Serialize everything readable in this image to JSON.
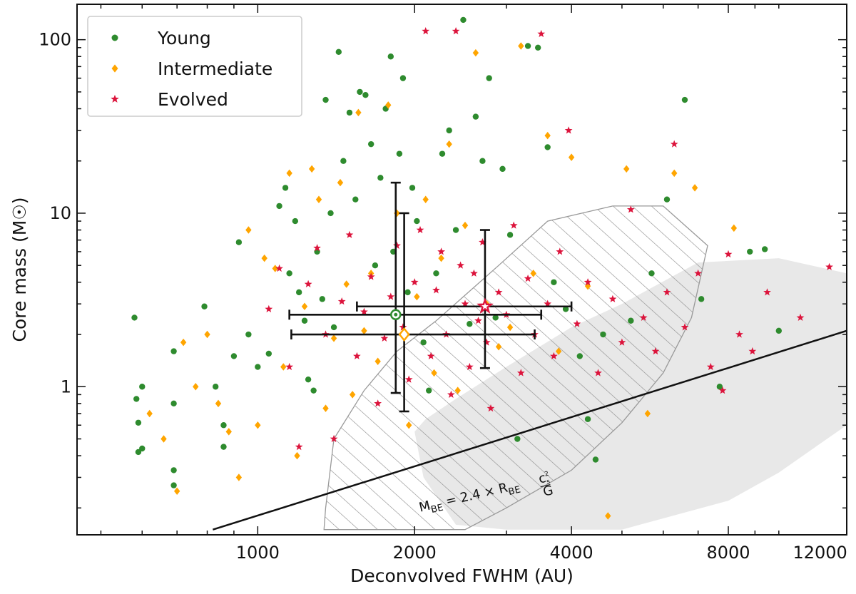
{
  "chart_data": {
    "type": "scatter",
    "xlabel": "Deconvolved FWHM (AU)",
    "ylabel": "Core mass (M☉)",
    "xscale": "log",
    "yscale": "log",
    "xlim": [
      450,
      13500
    ],
    "ylim": [
      0.14,
      160
    ],
    "x_tick_labels": [
      {
        "value": 1000,
        "label": "1000"
      },
      {
        "value": 2000,
        "label": "2000"
      },
      {
        "value": 4000,
        "label": "4000"
      },
      {
        "value": 8000,
        "label": "8000"
      },
      {
        "value": 12000,
        "label": "12000"
      }
    ],
    "y_tick_labels": [
      {
        "value": 1,
        "label": "1"
      },
      {
        "value": 10,
        "label": "10"
      },
      {
        "value": 100,
        "label": "100"
      }
    ],
    "legend_position": "top-left",
    "colors": {
      "young": "#2e8b2e",
      "intermediate": "#ffa500",
      "evolved": "#dc143c",
      "grid": "#555555"
    },
    "series": [
      {
        "name": "Young",
        "marker": "circle",
        "color": "#2e8b2e",
        "points": [
          [
            580,
            2.5
          ],
          [
            585,
            0.85
          ],
          [
            590,
            0.62
          ],
          [
            590,
            0.42
          ],
          [
            600,
            1.0
          ],
          [
            600,
            0.44
          ],
          [
            690,
            1.6
          ],
          [
            690,
            0.8
          ],
          [
            690,
            0.33
          ],
          [
            690,
            0.27
          ],
          [
            790,
            2.9
          ],
          [
            830,
            1.0
          ],
          [
            860,
            0.6
          ],
          [
            860,
            0.45
          ],
          [
            900,
            1.5
          ],
          [
            920,
            6.8
          ],
          [
            960,
            2.0
          ],
          [
            1000,
            1.3
          ],
          [
            1050,
            1.55
          ],
          [
            1100,
            11.0
          ],
          [
            1130,
            14.0
          ],
          [
            1150,
            4.5
          ],
          [
            1180,
            9.0
          ],
          [
            1200,
            3.5
          ],
          [
            1230,
            2.4
          ],
          [
            1250,
            1.1
          ],
          [
            1280,
            0.95
          ],
          [
            1300,
            6.0
          ],
          [
            1330,
            3.2
          ],
          [
            1350,
            45.0
          ],
          [
            1380,
            10.0
          ],
          [
            1400,
            2.2
          ],
          [
            1430,
            85.0
          ],
          [
            1460,
            20.0
          ],
          [
            1500,
            38.0
          ],
          [
            1540,
            12.0
          ],
          [
            1570,
            50.0
          ],
          [
            1610,
            48.0
          ],
          [
            1650,
            25.0
          ],
          [
            1680,
            5.0
          ],
          [
            1720,
            16.0
          ],
          [
            1760,
            40.0
          ],
          [
            1800,
            80.0
          ],
          [
            1820,
            6.0
          ],
          [
            1840,
            2.6
          ],
          [
            1870,
            22.0
          ],
          [
            1900,
            60.0
          ],
          [
            1940,
            3.5
          ],
          [
            1980,
            14.0
          ],
          [
            2020,
            9.0
          ],
          [
            2080,
            1.8
          ],
          [
            2130,
            0.95
          ],
          [
            2200,
            4.5
          ],
          [
            2260,
            22.0
          ],
          [
            2330,
            30.0
          ],
          [
            2400,
            8.0
          ],
          [
            2480,
            130.0
          ],
          [
            2550,
            2.3
          ],
          [
            2620,
            36.0
          ],
          [
            2700,
            20.0
          ],
          [
            2780,
            60.0
          ],
          [
            2860,
            2.5
          ],
          [
            2950,
            18.0
          ],
          [
            3050,
            7.5
          ],
          [
            3150,
            0.5
          ],
          [
            3300,
            92.0
          ],
          [
            3450,
            90.0
          ],
          [
            3600,
            24.0
          ],
          [
            3700,
            4.0
          ],
          [
            3900,
            2.8
          ],
          [
            4150,
            1.5
          ],
          [
            4300,
            0.65
          ],
          [
            4450,
            0.38
          ],
          [
            4600,
            2.0
          ],
          [
            5200,
            2.4
          ],
          [
            5700,
            4.5
          ],
          [
            6100,
            12.0
          ],
          [
            6600,
            45.0
          ],
          [
            7100,
            3.2
          ],
          [
            7700,
            1.0
          ],
          [
            8800,
            6.0
          ],
          [
            9400,
            6.2
          ],
          [
            10000,
            2.1
          ]
        ]
      },
      {
        "name": "Intermediate",
        "marker": "diamond",
        "color": "#ffa500",
        "points": [
          [
            620,
            0.7
          ],
          [
            660,
            0.5
          ],
          [
            700,
            0.25
          ],
          [
            720,
            1.8
          ],
          [
            760,
            1.0
          ],
          [
            800,
            2.0
          ],
          [
            840,
            0.8
          ],
          [
            880,
            0.55
          ],
          [
            920,
            0.3
          ],
          [
            960,
            8.0
          ],
          [
            1000,
            0.6
          ],
          [
            1030,
            5.5
          ],
          [
            1080,
            4.8
          ],
          [
            1120,
            1.3
          ],
          [
            1150,
            17.0
          ],
          [
            1190,
            0.4
          ],
          [
            1230,
            2.9
          ],
          [
            1270,
            18.0
          ],
          [
            1310,
            12.0
          ],
          [
            1350,
            0.75
          ],
          [
            1400,
            1.9
          ],
          [
            1440,
            15.0
          ],
          [
            1480,
            3.9
          ],
          [
            1520,
            0.9
          ],
          [
            1560,
            38.0
          ],
          [
            1600,
            2.1
          ],
          [
            1650,
            4.5
          ],
          [
            1700,
            1.4
          ],
          [
            1780,
            42.0
          ],
          [
            1850,
            10.0
          ],
          [
            1900,
            2.0
          ],
          [
            1950,
            0.6
          ],
          [
            2020,
            3.3
          ],
          [
            2100,
            12.0
          ],
          [
            2180,
            1.2
          ],
          [
            2250,
            5.5
          ],
          [
            2330,
            25.0
          ],
          [
            2420,
            0.95
          ],
          [
            2500,
            8.5
          ],
          [
            2620,
            84.0
          ],
          [
            2750,
            3.0
          ],
          [
            2900,
            1.7
          ],
          [
            3050,
            2.2
          ],
          [
            3200,
            92.0
          ],
          [
            3380,
            4.5
          ],
          [
            3600,
            28.0
          ],
          [
            3780,
            1.6
          ],
          [
            4000,
            21.0
          ],
          [
            4300,
            3.8
          ],
          [
            4700,
            0.18
          ],
          [
            5100,
            18.0
          ],
          [
            5600,
            0.7
          ],
          [
            6300,
            17.0
          ],
          [
            6900,
            14.0
          ],
          [
            8200,
            8.2
          ]
        ]
      },
      {
        "name": "Evolved",
        "marker": "star",
        "color": "#dc143c",
        "points": [
          [
            1050,
            2.8
          ],
          [
            1100,
            4.8
          ],
          [
            1150,
            1.3
          ],
          [
            1200,
            0.45
          ],
          [
            1250,
            3.9
          ],
          [
            1300,
            6.3
          ],
          [
            1350,
            2.0
          ],
          [
            1400,
            0.5
          ],
          [
            1450,
            3.1
          ],
          [
            1500,
            7.5
          ],
          [
            1550,
            1.5
          ],
          [
            1600,
            2.7
          ],
          [
            1650,
            4.3
          ],
          [
            1700,
            0.8
          ],
          [
            1750,
            1.9
          ],
          [
            1800,
            3.3
          ],
          [
            1850,
            6.5
          ],
          [
            1900,
            2.2
          ],
          [
            1950,
            1.1
          ],
          [
            2000,
            4.0
          ],
          [
            2050,
            8.0
          ],
          [
            2100,
            112.0
          ],
          [
            2150,
            1.5
          ],
          [
            2200,
            3.6
          ],
          [
            2250,
            6.0
          ],
          [
            2300,
            2.0
          ],
          [
            2350,
            0.9
          ],
          [
            2400,
            112.0
          ],
          [
            2450,
            5.0
          ],
          [
            2500,
            3.0
          ],
          [
            2550,
            1.3
          ],
          [
            2600,
            4.5
          ],
          [
            2650,
            2.4
          ],
          [
            2700,
            6.8
          ],
          [
            2750,
            1.8
          ],
          [
            2800,
            0.75
          ],
          [
            2900,
            3.5
          ],
          [
            3000,
            2.6
          ],
          [
            3100,
            8.5
          ],
          [
            3200,
            1.2
          ],
          [
            3300,
            4.2
          ],
          [
            3400,
            2.0
          ],
          [
            3500,
            108.0
          ],
          [
            3600,
            3.0
          ],
          [
            3700,
            1.5
          ],
          [
            3800,
            6.0
          ],
          [
            3950,
            30.0
          ],
          [
            4100,
            2.3
          ],
          [
            4300,
            4.0
          ],
          [
            4500,
            1.2
          ],
          [
            4800,
            3.2
          ],
          [
            5000,
            1.8
          ],
          [
            5200,
            10.5
          ],
          [
            5500,
            2.5
          ],
          [
            5800,
            1.6
          ],
          [
            6100,
            3.5
          ],
          [
            6300,
            25.0
          ],
          [
            6600,
            2.2
          ],
          [
            7000,
            4.5
          ],
          [
            7400,
            1.3
          ],
          [
            7800,
            0.95
          ],
          [
            8000,
            5.8
          ],
          [
            8400,
            2.0
          ],
          [
            8900,
            1.6
          ],
          [
            9500,
            3.5
          ],
          [
            11000,
            2.5
          ],
          [
            12500,
            4.9
          ]
        ]
      }
    ],
    "error_bars": [
      {
        "series": "Young",
        "x": 1840,
        "y": 2.6,
        "xerr": [
          1150,
          3500
        ],
        "yerr": [
          0.92,
          15.0
        ]
      },
      {
        "series": "Intermediate",
        "x": 1910,
        "y": 2.0,
        "xerr": [
          1160,
          3400
        ],
        "yerr": [
          0.72,
          10.0
        ]
      },
      {
        "series": "Evolved",
        "x": 2730,
        "y": 2.9,
        "xerr": [
          1550,
          4000
        ],
        "yerr": [
          1.28,
          8.0
        ]
      }
    ],
    "shaded_region": {
      "label": "grey region",
      "polygon": [
        [
          2000,
          0.55
        ],
        [
          2080,
          0.3
        ],
        [
          2400,
          0.16
        ],
        [
          3000,
          0.15
        ],
        [
          5000,
          0.15
        ],
        [
          8000,
          0.22
        ],
        [
          10000,
          0.32
        ],
        [
          13500,
          0.6
        ],
        [
          13500,
          4.5
        ],
        [
          10000,
          5.5
        ],
        [
          7000,
          5.2
        ],
        [
          5000,
          3.0
        ],
        [
          4000,
          2.2
        ],
        [
          3000,
          1.3
        ],
        [
          2400,
          0.85
        ],
        [
          2100,
          0.65
        ]
      ]
    },
    "hatched_region": {
      "label": "hatched region",
      "polygon": [
        [
          1350,
          0.2
        ],
        [
          1400,
          0.5
        ],
        [
          1600,
          0.95
        ],
        [
          1850,
          1.6
        ],
        [
          2200,
          2.4
        ],
        [
          2900,
          5.0
        ],
        [
          3600,
          9.0
        ],
        [
          4800,
          11.0
        ],
        [
          6000,
          11.0
        ],
        [
          7300,
          6.5
        ],
        [
          6800,
          2.5
        ],
        [
          6000,
          1.2
        ],
        [
          5000,
          0.62
        ],
        [
          4000,
          0.33
        ],
        [
          3000,
          0.2
        ],
        [
          2500,
          0.15
        ],
        [
          1340,
          0.15
        ]
      ]
    },
    "be_line": {
      "label": "Bonnor-Ebert mass line",
      "points": [
        [
          820,
          0.15
        ],
        [
          13500,
          2.1
        ]
      ]
    },
    "annotation": {
      "text_main": "M",
      "text_sub": "BE",
      "text_mid": " = 2.4 × R",
      "text_sub2": "BE",
      "frac_num": "c",
      "frac_num_sub": "s",
      "frac_num_sup": "2",
      "frac_den": "G",
      "anchor": [
        2050,
        0.19
      ],
      "angle_deg": -13
    }
  }
}
